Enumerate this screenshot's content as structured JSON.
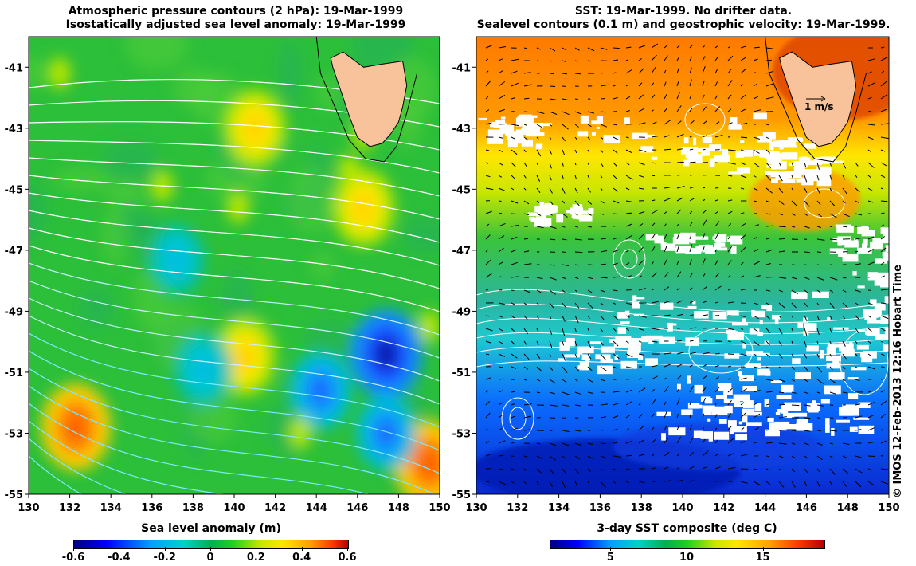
{
  "left_title": {
    "line1": "Atmospheric pressure contours (2 hPa): 19-Mar-1999",
    "line2": "Isostatically adjusted sea level anomaly: 19-Mar-1999"
  },
  "right_title": {
    "line1": "SST: 19-Mar-1999. No drifter data.",
    "line2": "Sealevel contours (0.1 m) and geostrophic velocity: 19-Mar-1999."
  },
  "velocity_label": "1 m/s",
  "copyright": "© IMOS 12-Feb-2013 12:16 Hobart Time",
  "left_colorbar": {
    "label": "Sea level anomaly (m)",
    "ticks": [
      "-0.6",
      "-0.4",
      "-0.2",
      "0",
      "0.2",
      "0.4",
      "0.6"
    ]
  },
  "right_colorbar": {
    "label": "3-day SST composite (deg C)",
    "ticks": [
      "5",
      "10",
      "15"
    ]
  },
  "colors": {
    "land": "#f8c39a",
    "ocean_mid": "#2cbf3a",
    "warm": "#ff7a00",
    "cold": "#1a3cff",
    "contour": "#ffffff"
  },
  "chart_data": [
    {
      "type": "heatmap",
      "title": "Atmospheric pressure contours (2 hPa): 19-Mar-1999 / Isostatically adjusted sea level anomaly: 19-Mar-1999",
      "xlabel": "",
      "ylabel": "",
      "xlim": [
        130,
        150
      ],
      "ylim": [
        -55,
        -40
      ],
      "x_ticks": [
        "130",
        "132",
        "134",
        "136",
        "138",
        "140",
        "142",
        "144",
        "146",
        "148",
        "150"
      ],
      "y_ticks": [
        "-41",
        "-43",
        "-45",
        "-47",
        "-49",
        "-51",
        "-53",
        "-55"
      ],
      "colorbar": {
        "label": "Sea level anomaly (m)",
        "range": [
          -0.6,
          0.6
        ]
      },
      "features": [
        {
          "kind": "high",
          "lon": 132.3,
          "lat": -52.8,
          "value": 0.45
        },
        {
          "kind": "high",
          "lon": 141.0,
          "lat": -43.0,
          "value": 0.3
        },
        {
          "kind": "high",
          "lon": 146.3,
          "lat": -45.6,
          "value": 0.3
        },
        {
          "kind": "high",
          "lon": 140.5,
          "lat": -50.5,
          "value": 0.3
        },
        {
          "kind": "high",
          "lon": 149.5,
          "lat": -54.0,
          "value": 0.45
        },
        {
          "kind": "low",
          "lon": 147.4,
          "lat": -50.4,
          "value": -0.5
        },
        {
          "kind": "low",
          "lon": 144.2,
          "lat": -51.6,
          "value": -0.3
        },
        {
          "kind": "low",
          "lon": 138.5,
          "lat": -50.9,
          "value": -0.2
        },
        {
          "kind": "low",
          "lon": 137.2,
          "lat": -47.3,
          "value": -0.15
        },
        {
          "kind": "low",
          "lon": 147.4,
          "lat": -53.0,
          "value": -0.25
        }
      ]
    },
    {
      "type": "heatmap",
      "title": "SST: 19-Mar-1999. No drifter data. / Sealevel contours (0.1 m) and geostrophic velocity: 19-Mar-1999.",
      "xlabel": "",
      "ylabel": "",
      "xlim": [
        130,
        150
      ],
      "ylim": [
        -55,
        -40
      ],
      "x_ticks": [
        "130",
        "132",
        "134",
        "136",
        "138",
        "140",
        "142",
        "144",
        "146",
        "148",
        "150"
      ],
      "y_ticks": [
        "-41",
        "-43",
        "-45",
        "-47",
        "-49",
        "-51",
        "-53",
        "-55"
      ],
      "colorbar": {
        "label": "3-day SST composite (deg C)",
        "range": [
          1,
          19
        ]
      },
      "sst_bands": [
        {
          "lat_from": -40,
          "lat_to": -43.5,
          "sst": 16
        },
        {
          "lat_from": -43.5,
          "lat_to": -45.5,
          "sst": 14
        },
        {
          "lat_from": -45.5,
          "lat_to": -47,
          "sst": 11.5
        },
        {
          "lat_from": -47,
          "lat_to": -49,
          "sst": 10
        },
        {
          "lat_from": -49,
          "lat_to": -52,
          "sst": 9
        },
        {
          "lat_from": -52,
          "lat_to": -55,
          "sst": 4
        }
      ],
      "velocity_scale": "1 m/s"
    }
  ]
}
